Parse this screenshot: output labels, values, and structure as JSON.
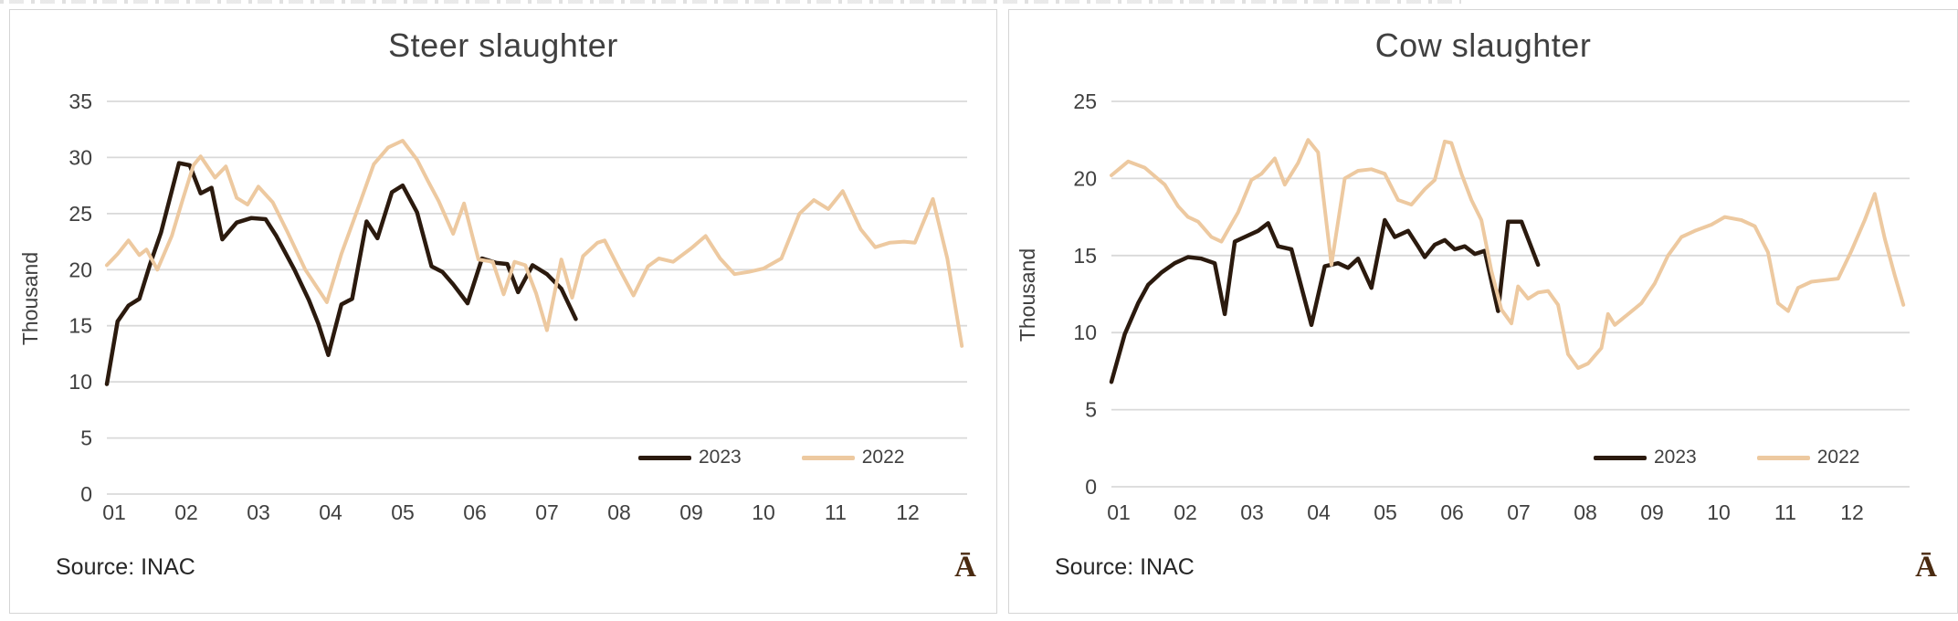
{
  "page": {
    "artifact_note": "cropped text strip at very top edge"
  },
  "colors": {
    "series_2023": "#2b1a0e",
    "series_2022": "#edc9a0",
    "grid": "#d9d9d9",
    "axis_text": "#404040",
    "title_text": "#404040",
    "panel_border": "#d5d5d5",
    "logo": "#4a2a10"
  },
  "chart_data": [
    {
      "type": "line",
      "title": "Steer slaughter",
      "xlabel": "",
      "ylabel": "Thousand",
      "source": "Source: INAC",
      "logo_glyph": "Ā",
      "grid": true,
      "legend_position": "inside-bottom-right",
      "ylim": [
        0,
        35
      ],
      "yticks": [
        0,
        5,
        10,
        15,
        20,
        25,
        30,
        35
      ],
      "xticks": [
        "01",
        "02",
        "03",
        "04",
        "05",
        "06",
        "07",
        "08",
        "09",
        "10",
        "11",
        "12"
      ],
      "series": [
        {
          "name": "2023",
          "color": "#2b1a0e",
          "points": [
            [
              1.0,
              9.8
            ],
            [
              1.15,
              15.4
            ],
            [
              1.3,
              16.8
            ],
            [
              1.45,
              17.4
            ],
            [
              1.6,
              20.5
            ],
            [
              1.75,
              23.3
            ],
            [
              2.0,
              29.5
            ],
            [
              2.15,
              29.3
            ],
            [
              2.3,
              26.8
            ],
            [
              2.45,
              27.3
            ],
            [
              2.6,
              22.7
            ],
            [
              2.8,
              24.2
            ],
            [
              3.0,
              24.6
            ],
            [
              3.2,
              24.5
            ],
            [
              3.35,
              23.0
            ],
            [
              3.6,
              20.0
            ],
            [
              3.8,
              17.3
            ],
            [
              3.93,
              15.2
            ],
            [
              4.07,
              12.4
            ],
            [
              4.25,
              16.9
            ],
            [
              4.4,
              17.4
            ],
            [
              4.6,
              24.3
            ],
            [
              4.75,
              22.8
            ],
            [
              4.95,
              26.9
            ],
            [
              5.1,
              27.5
            ],
            [
              5.3,
              25.1
            ],
            [
              5.5,
              20.3
            ],
            [
              5.65,
              19.8
            ],
            [
              5.8,
              18.7
            ],
            [
              6.0,
              17.0
            ],
            [
              6.2,
              21.0
            ],
            [
              6.4,
              20.6
            ],
            [
              6.55,
              20.5
            ],
            [
              6.7,
              18.0
            ],
            [
              6.9,
              20.4
            ],
            [
              7.1,
              19.6
            ],
            [
              7.3,
              18.3
            ],
            [
              7.5,
              15.6
            ]
          ]
        },
        {
          "name": "2022",
          "color": "#edc9a0",
          "points": [
            [
              1.0,
              20.4
            ],
            [
              1.15,
              21.4
            ],
            [
              1.3,
              22.6
            ],
            [
              1.45,
              21.3
            ],
            [
              1.55,
              21.8
            ],
            [
              1.7,
              20.0
            ],
            [
              1.9,
              23.0
            ],
            [
              2.05,
              26.2
            ],
            [
              2.2,
              29.3
            ],
            [
              2.3,
              30.1
            ],
            [
              2.5,
              28.2
            ],
            [
              2.65,
              29.2
            ],
            [
              2.8,
              26.4
            ],
            [
              2.95,
              25.8
            ],
            [
              3.1,
              27.4
            ],
            [
              3.3,
              26.0
            ],
            [
              3.5,
              23.4
            ],
            [
              3.75,
              20.0
            ],
            [
              4.05,
              17.1
            ],
            [
              4.25,
              21.4
            ],
            [
              4.5,
              25.8
            ],
            [
              4.7,
              29.4
            ],
            [
              4.9,
              30.9
            ],
            [
              5.1,
              31.5
            ],
            [
              5.3,
              29.8
            ],
            [
              5.45,
              27.9
            ],
            [
              5.6,
              26.1
            ],
            [
              5.8,
              23.2
            ],
            [
              5.95,
              25.9
            ],
            [
              6.15,
              20.9
            ],
            [
              6.35,
              20.7
            ],
            [
              6.5,
              17.8
            ],
            [
              6.65,
              20.7
            ],
            [
              6.8,
              20.4
            ],
            [
              6.95,
              17.9
            ],
            [
              7.1,
              14.6
            ],
            [
              7.3,
              20.9
            ],
            [
              7.45,
              17.5
            ],
            [
              7.6,
              21.2
            ],
            [
              7.8,
              22.4
            ],
            [
              7.9,
              22.6
            ],
            [
              8.1,
              20.1
            ],
            [
              8.3,
              17.7
            ],
            [
              8.5,
              20.3
            ],
            [
              8.65,
              21.0
            ],
            [
              8.85,
              20.7
            ],
            [
              9.1,
              21.9
            ],
            [
              9.3,
              23.0
            ],
            [
              9.5,
              21.0
            ],
            [
              9.7,
              19.6
            ],
            [
              9.9,
              19.8
            ],
            [
              10.1,
              20.1
            ],
            [
              10.35,
              21.0
            ],
            [
              10.6,
              25.0
            ],
            [
              10.8,
              26.2
            ],
            [
              11.0,
              25.4
            ],
            [
              11.2,
              27.0
            ],
            [
              11.45,
              23.6
            ],
            [
              11.65,
              22.0
            ],
            [
              11.85,
              22.4
            ],
            [
              12.05,
              22.5
            ],
            [
              12.2,
              22.4
            ],
            [
              12.45,
              26.3
            ],
            [
              12.65,
              21.0
            ],
            [
              12.85,
              13.2
            ]
          ]
        }
      ]
    },
    {
      "type": "line",
      "title": "Cow slaughter",
      "xlabel": "",
      "ylabel": "Thousand",
      "source": "Source: INAC",
      "logo_glyph": "Ā",
      "grid": true,
      "legend_position": "inside-bottom-right",
      "ylim": [
        0,
        25
      ],
      "yticks": [
        0,
        5,
        10,
        15,
        20,
        25
      ],
      "xticks": [
        "01",
        "02",
        "03",
        "04",
        "05",
        "06",
        "07",
        "08",
        "09",
        "10",
        "11",
        "12"
      ],
      "series": [
        {
          "name": "2023",
          "color": "#2b1a0e",
          "points": [
            [
              1.0,
              6.8
            ],
            [
              1.2,
              9.9
            ],
            [
              1.4,
              11.9
            ],
            [
              1.55,
              13.1
            ],
            [
              1.75,
              13.9
            ],
            [
              1.95,
              14.5
            ],
            [
              2.15,
              14.9
            ],
            [
              2.35,
              14.8
            ],
            [
              2.55,
              14.5
            ],
            [
              2.7,
              11.2
            ],
            [
              2.85,
              15.9
            ],
            [
              3.0,
              16.2
            ],
            [
              3.2,
              16.6
            ],
            [
              3.35,
              17.1
            ],
            [
              3.5,
              15.6
            ],
            [
              3.7,
              15.4
            ],
            [
              4.0,
              10.5
            ],
            [
              4.2,
              14.3
            ],
            [
              4.4,
              14.5
            ],
            [
              4.55,
              14.2
            ],
            [
              4.7,
              14.8
            ],
            [
              4.9,
              12.9
            ],
            [
              5.1,
              17.3
            ],
            [
              5.25,
              16.2
            ],
            [
              5.45,
              16.6
            ],
            [
              5.6,
              15.6
            ],
            [
              5.7,
              14.9
            ],
            [
              5.85,
              15.7
            ],
            [
              6.0,
              16.0
            ],
            [
              6.15,
              15.4
            ],
            [
              6.3,
              15.6
            ],
            [
              6.45,
              15.1
            ],
            [
              6.6,
              15.3
            ],
            [
              6.8,
              11.4
            ],
            [
              6.95,
              17.2
            ],
            [
              7.15,
              17.2
            ],
            [
              7.4,
              14.4
            ]
          ]
        },
        {
          "name": "2022",
          "color": "#edc9a0",
          "points": [
            [
              1.0,
              20.2
            ],
            [
              1.25,
              21.1
            ],
            [
              1.5,
              20.7
            ],
            [
              1.8,
              19.6
            ],
            [
              2.0,
              18.2
            ],
            [
              2.15,
              17.5
            ],
            [
              2.3,
              17.2
            ],
            [
              2.5,
              16.2
            ],
            [
              2.65,
              15.9
            ],
            [
              2.9,
              17.8
            ],
            [
              3.1,
              19.9
            ],
            [
              3.25,
              20.3
            ],
            [
              3.45,
              21.3
            ],
            [
              3.6,
              19.6
            ],
            [
              3.8,
              21.0
            ],
            [
              3.95,
              22.5
            ],
            [
              4.1,
              21.7
            ],
            [
              4.3,
              14.4
            ],
            [
              4.5,
              20.0
            ],
            [
              4.7,
              20.5
            ],
            [
              4.9,
              20.6
            ],
            [
              5.1,
              20.3
            ],
            [
              5.3,
              18.6
            ],
            [
              5.5,
              18.3
            ],
            [
              5.7,
              19.3
            ],
            [
              5.85,
              19.9
            ],
            [
              6.0,
              22.4
            ],
            [
              6.1,
              22.3
            ],
            [
              6.25,
              20.3
            ],
            [
              6.4,
              18.6
            ],
            [
              6.55,
              17.3
            ],
            [
              6.7,
              14.0
            ],
            [
              6.85,
              11.5
            ],
            [
              7.0,
              10.6
            ],
            [
              7.1,
              13.0
            ],
            [
              7.25,
              12.2
            ],
            [
              7.4,
              12.6
            ],
            [
              7.55,
              12.7
            ],
            [
              7.7,
              11.8
            ],
            [
              7.85,
              8.6
            ],
            [
              8.0,
              7.7
            ],
            [
              8.15,
              8.0
            ],
            [
              8.35,
              9.0
            ],
            [
              8.45,
              11.2
            ],
            [
              8.55,
              10.5
            ],
            [
              8.75,
              11.2
            ],
            [
              8.95,
              11.9
            ],
            [
              9.15,
              13.2
            ],
            [
              9.35,
              15.0
            ],
            [
              9.55,
              16.2
            ],
            [
              9.75,
              16.6
            ],
            [
              10.0,
              17.0
            ],
            [
              10.2,
              17.5
            ],
            [
              10.45,
              17.3
            ],
            [
              10.65,
              16.9
            ],
            [
              10.85,
              15.2
            ],
            [
              11.0,
              11.9
            ],
            [
              11.15,
              11.4
            ],
            [
              11.3,
              12.9
            ],
            [
              11.5,
              13.3
            ],
            [
              11.7,
              13.4
            ],
            [
              11.9,
              13.5
            ],
            [
              12.1,
              15.3
            ],
            [
              12.3,
              17.3
            ],
            [
              12.45,
              19.0
            ],
            [
              12.6,
              16.1
            ],
            [
              12.75,
              13.7
            ],
            [
              12.88,
              11.8
            ]
          ]
        }
      ]
    }
  ]
}
